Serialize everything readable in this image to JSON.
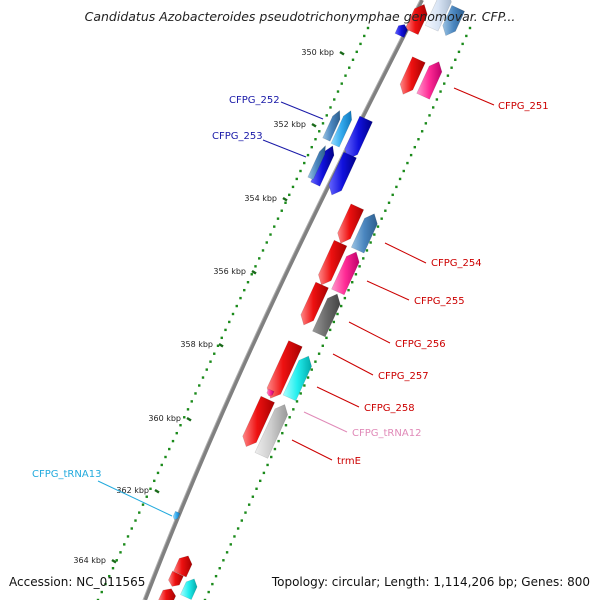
{
  "title": "Candidatus Azobacteroides pseudotrichonymphae genomovar. CFP...",
  "footer": {
    "accession": "Accession: NC_011565",
    "summary": "Topology: circular; Length: 1,114,206 bp; Genes: 800"
  },
  "ticks": [
    {
      "label": "350 kbp"
    },
    {
      "label": "352 kbp"
    },
    {
      "label": "354 kbp"
    },
    {
      "label": "356 kbp"
    },
    {
      "label": "358 kbp"
    },
    {
      "label": "360 kbp"
    },
    {
      "label": "362 kbp"
    },
    {
      "label": "364 kbp"
    }
  ],
  "gene_labels": [
    {
      "text": "CFPG_252",
      "color": "#1a1aa8"
    },
    {
      "text": "CFPG_253",
      "color": "#1a1aa8"
    },
    {
      "text": "CFPG_251",
      "color": "#cc0000"
    },
    {
      "text": "CFPG_254",
      "color": "#cc0000"
    },
    {
      "text": "CFPG_255",
      "color": "#cc0000"
    },
    {
      "text": "CFPG_256",
      "color": "#cc0000"
    },
    {
      "text": "CFPG_257",
      "color": "#cc0000"
    },
    {
      "text": "CFPG_258",
      "color": "#cc0000"
    },
    {
      "text": "CFPG_tRNA12",
      "color": "#e08ab8"
    },
    {
      "text": "trmE",
      "color": "#cc0000"
    },
    {
      "text": "CFPG_tRNA13",
      "color": "#22aadd"
    }
  ],
  "colors": {
    "backbone": "#808080",
    "cds": "#ee1111",
    "cds_reverse": "#1111dd",
    "rna": "#ff3399",
    "other": "#3399cc",
    "tick_dots": "#1a8a1a"
  }
}
